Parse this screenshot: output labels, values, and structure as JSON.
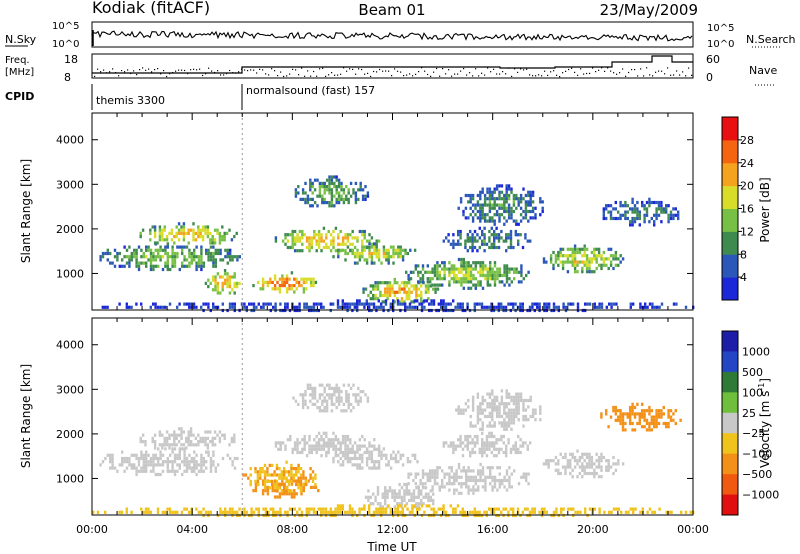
{
  "header": {
    "station": "Kodiak (fitACF)",
    "beam": "Beam 01",
    "date": "23/May/2009"
  },
  "noise_panel": {
    "left_label": "N.Sky",
    "right_label": "N.Search",
    "left_ticks": [
      "10^5",
      "10^0"
    ],
    "right_ticks": [
      "10^5",
      "10^0"
    ]
  },
  "freq_panel": {
    "left_label_line1": "Freq.",
    "left_label_line2": "[MHz]",
    "right_label": "Nave",
    "left_ticks": [
      "18",
      "8"
    ],
    "right_ticks": [
      "60",
      "0"
    ]
  },
  "cpid": {
    "label": "CPID",
    "modes": [
      {
        "name": "themis 3300",
        "start_hour": 0
      },
      {
        "name": "normalsound (fast) 157",
        "start_hour": 6
      }
    ]
  },
  "colors": {
    "power": [
      "#1c28d8",
      "#2a57b8",
      "#3f8a4e",
      "#77c045",
      "#d7dd29",
      "#f5a21e",
      "#f56410",
      "#e81010"
    ],
    "velocity": [
      "#1c1ea8",
      "#2446c4",
      "#2f7a37",
      "#70bf3c",
      "#c8c8c8",
      "#f0c21c",
      "#f39018",
      "#f05a10",
      "#e01010"
    ],
    "velocity_ground": "#c8c8c8"
  },
  "chart_data": [
    {
      "type": "heatmap",
      "name": "power",
      "xlabel": "",
      "ylabel": "Slant Range [km]",
      "x_unit": "hours UT",
      "xlim": [
        0,
        24
      ],
      "ylim": [
        180,
        4600
      ],
      "yticks": [
        "1000",
        "2000",
        "3000",
        "4000"
      ],
      "ytick_values": [
        1000,
        2000,
        3000,
        4000
      ],
      "colorbar": {
        "label": "Power [dB]",
        "ticks": [
          "4",
          "8",
          "12",
          "16",
          "20",
          "24",
          "28"
        ],
        "range": [
          0,
          32
        ]
      },
      "regions": [
        {
          "t": [
            0.2,
            5.9
          ],
          "r": [
            1100,
            1700
          ],
          "p": 14
        },
        {
          "t": [
            1.8,
            5.8
          ],
          "r": [
            1650,
            2150
          ],
          "p": 20
        },
        {
          "t": [
            4.5,
            6.0
          ],
          "r": [
            550,
            1100
          ],
          "p": 22
        },
        {
          "t": [
            6.4,
            9.0
          ],
          "r": [
            580,
            1050
          ],
          "p": 26
        },
        {
          "t": [
            7.2,
            11.5
          ],
          "r": [
            1500,
            2050
          ],
          "p": 21
        },
        {
          "t": [
            9.5,
            13.0
          ],
          "r": [
            1250,
            1700
          ],
          "p": 18
        },
        {
          "t": [
            10.8,
            13.8
          ],
          "r": [
            350,
            900
          ],
          "p": 22
        },
        {
          "t": [
            12.5,
            17.5
          ],
          "r": [
            700,
            1350
          ],
          "p": 16
        },
        {
          "t": [
            14.0,
            17.5
          ],
          "r": [
            1500,
            2050
          ],
          "p": 10
        },
        {
          "t": [
            18.0,
            21.2
          ],
          "r": [
            1050,
            1650
          ],
          "p": 18
        },
        {
          "t": [
            20.2,
            23.5
          ],
          "r": [
            2100,
            2700
          ],
          "p": 9
        },
        {
          "t": [
            8.0,
            11.0
          ],
          "r": [
            2500,
            3200
          ],
          "p": 13
        },
        {
          "t": [
            14.5,
            18.0
          ],
          "r": [
            2100,
            3000
          ],
          "p": 10
        },
        {
          "t": [
            0.0,
            24.0
          ],
          "r": [
            180,
            420
          ],
          "p": 5
        }
      ]
    },
    {
      "type": "heatmap",
      "name": "velocity",
      "xlabel": "Time UT",
      "ylabel": "Slant Range [km]",
      "x_unit": "hours UT",
      "xlim": [
        0,
        24
      ],
      "ylim": [
        180,
        4600
      ],
      "yticks": [
        "1000",
        "2000",
        "3000",
        "4000"
      ],
      "ytick_values": [
        1000,
        2000,
        3000,
        4000
      ],
      "xticks": [
        "00:00",
        "04:00",
        "08:00",
        "12:00",
        "16:00",
        "20:00",
        "00:00"
      ],
      "xtick_values": [
        0,
        4,
        8,
        12,
        16,
        20,
        24
      ],
      "colorbar": {
        "label": "Velocity [m s",
        "label_sup": "-1",
        "label_end": "]",
        "ticks": [
          "1000",
          "500",
          "100",
          "25",
          "−25",
          "−100",
          "−500",
          "−1000"
        ]
      },
      "regions": [
        {
          "t": [
            0.2,
            5.9
          ],
          "r": [
            1100,
            1700
          ],
          "v": 0
        },
        {
          "t": [
            1.8,
            5.8
          ],
          "r": [
            1650,
            2150
          ],
          "v": 0
        },
        {
          "t": [
            6.4,
            9.0
          ],
          "r": [
            580,
            1050
          ],
          "v": -180
        },
        {
          "t": [
            7.2,
            11.5
          ],
          "r": [
            1500,
            2050
          ],
          "v": 0
        },
        {
          "t": [
            9.5,
            13.0
          ],
          "r": [
            1250,
            1700
          ],
          "v": 0
        },
        {
          "t": [
            10.8,
            13.8
          ],
          "r": [
            350,
            900
          ],
          "v": 0
        },
        {
          "t": [
            12.5,
            17.5
          ],
          "r": [
            700,
            1350
          ],
          "v": 0
        },
        {
          "t": [
            14.0,
            17.5
          ],
          "r": [
            1500,
            2050
          ],
          "v": 0
        },
        {
          "t": [
            18.0,
            21.2
          ],
          "r": [
            1050,
            1650
          ],
          "v": 0
        },
        {
          "t": [
            20.2,
            23.5
          ],
          "r": [
            2100,
            2700
          ],
          "v": -350
        },
        {
          "t": [
            8.0,
            11.0
          ],
          "r": [
            2500,
            3200
          ],
          "v": 0
        },
        {
          "t": [
            14.5,
            18.0
          ],
          "r": [
            2100,
            3000
          ],
          "v": 0
        },
        {
          "t": [
            0.0,
            24.0
          ],
          "r": [
            180,
            420
          ],
          "v": -60
        },
        {
          "t": [
            6.0,
            9.0
          ],
          "r": [
            700,
            1400
          ],
          "v": -90
        }
      ]
    }
  ]
}
